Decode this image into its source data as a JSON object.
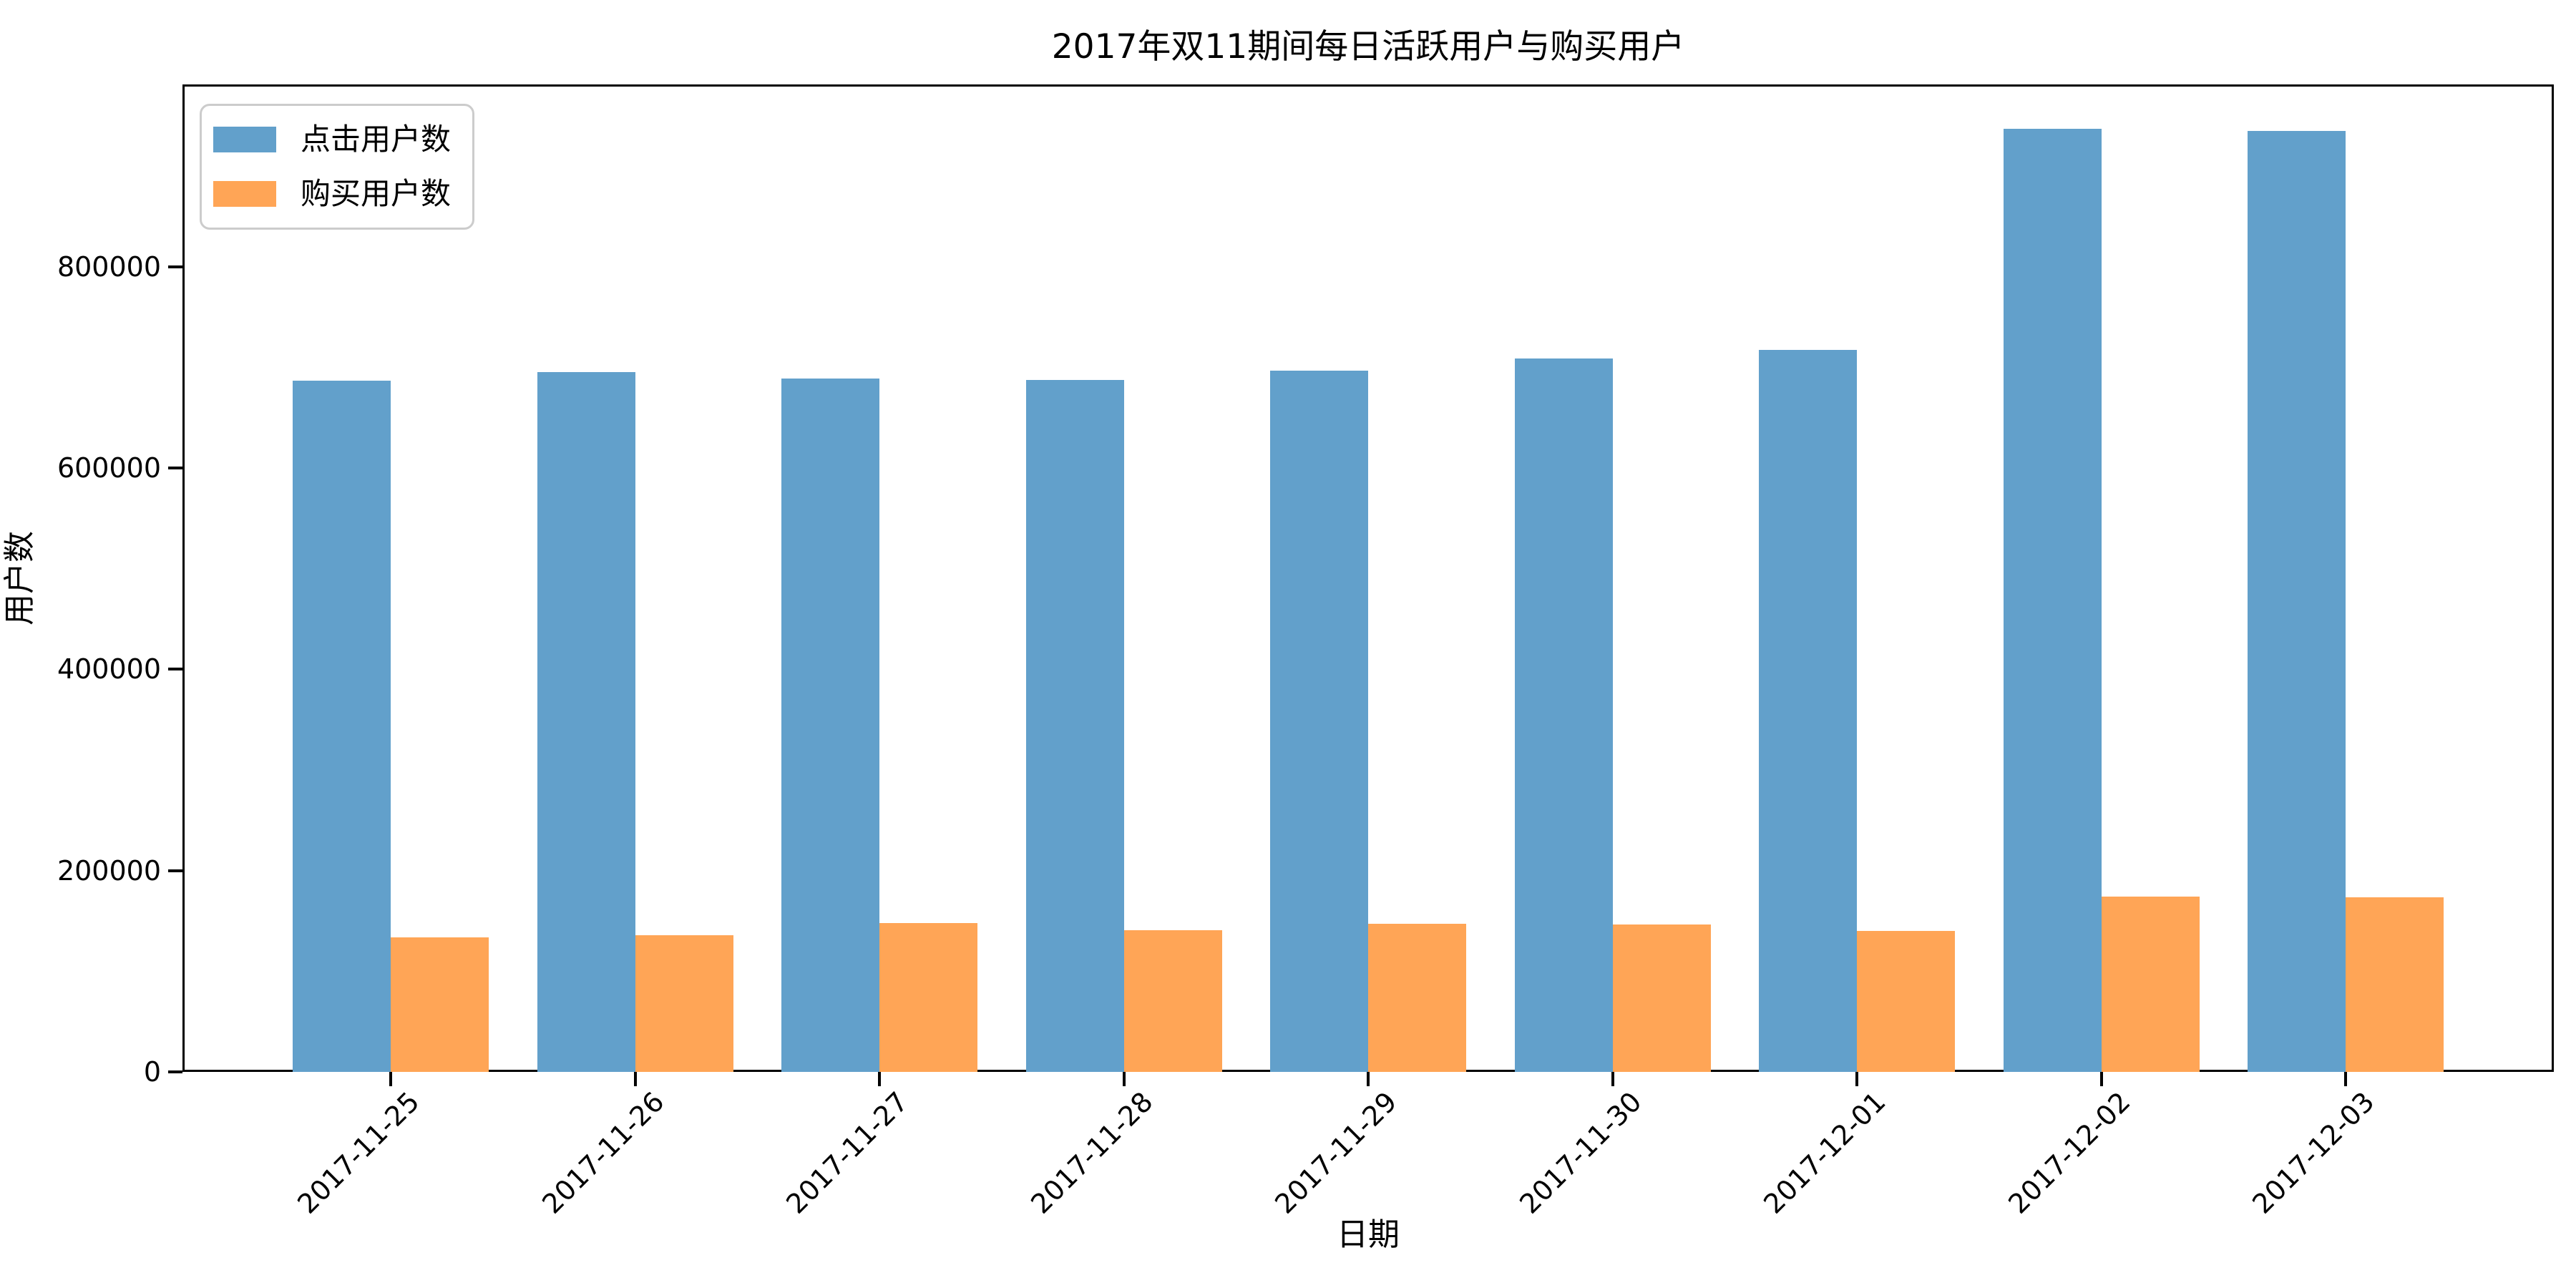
{
  "chart_data": {
    "type": "bar",
    "title": "2017年双11期间每日活跃用户与购买用户",
    "xlabel": "日期",
    "ylabel": "用户数",
    "categories": [
      "2017-11-25",
      "2017-11-26",
      "2017-11-27",
      "2017-11-28",
      "2017-11-29",
      "2017-11-30",
      "2017-12-01",
      "2017-12-02",
      "2017-12-03"
    ],
    "series": [
      {
        "name": "点击用户数",
        "color": "#62A0CB",
        "values": [
          687000,
          695000,
          689000,
          687500,
          696500,
          709000,
          717500,
          937000,
          934500
        ]
      },
      {
        "name": "购买用户数",
        "color": "#FFA556",
        "values": [
          133500,
          136000,
          148000,
          140500,
          147000,
          146500,
          140000,
          174000,
          173500
        ]
      }
    ],
    "yticks": [
      0,
      200000,
      400000,
      600000,
      800000
    ],
    "ytick_labels": [
      "0",
      "200000",
      "400000",
      "600000",
      "800000"
    ],
    "ylim": [
      0,
      981000
    ],
    "x_tick_rotation": 45,
    "grid": false,
    "legend_position": "upper left",
    "background_color": "#ffffff",
    "text_color": "#000000",
    "legend_border_color": "#cccccc"
  }
}
